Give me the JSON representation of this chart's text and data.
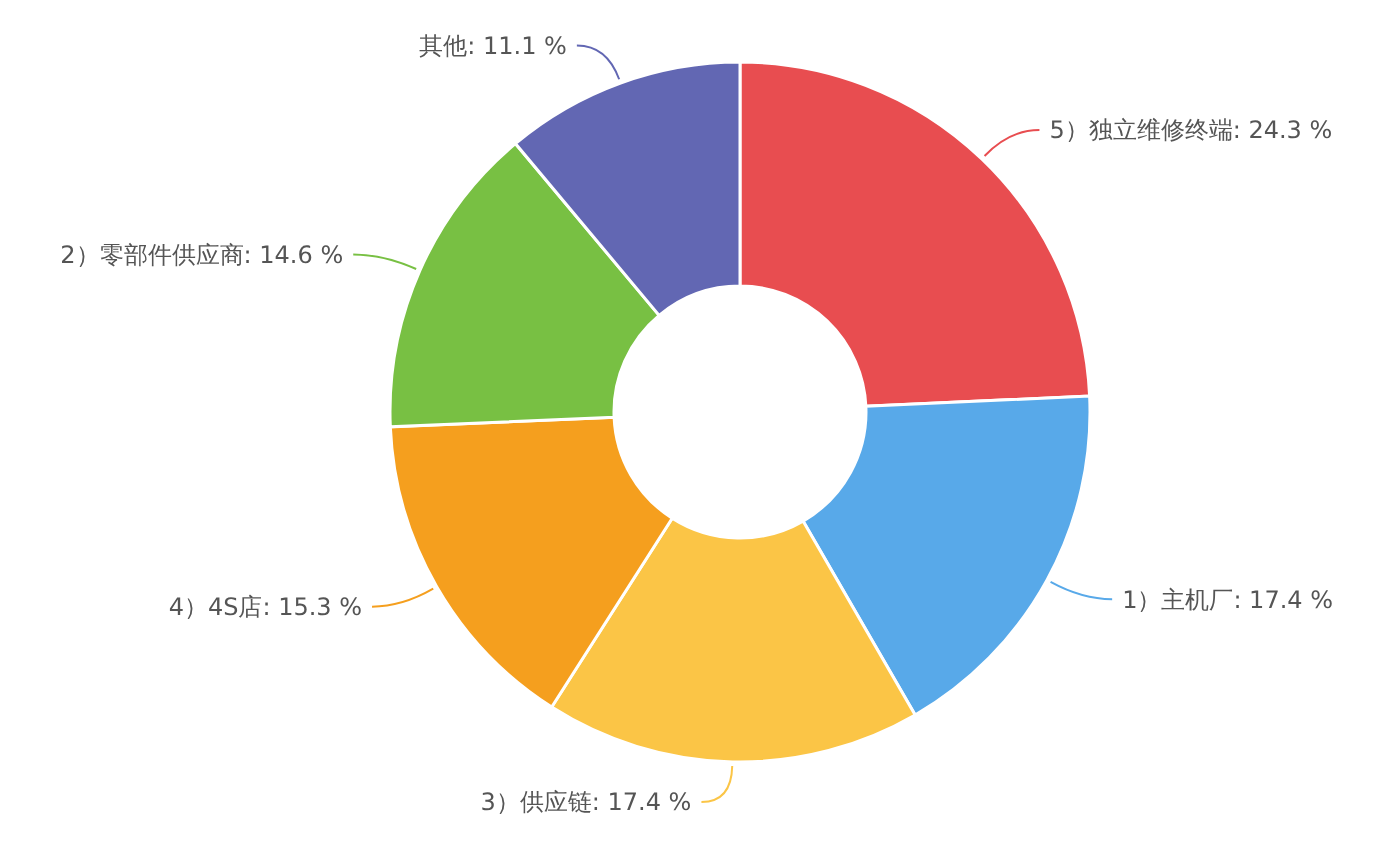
{
  "chart_data": {
    "type": "donut",
    "categories": [
      "5）独立维修终端",
      "1）主机厂",
      "3）供应链",
      "4）4S店",
      "2）零部件供应商",
      "其他"
    ],
    "values": [
      24.3,
      17.4,
      17.4,
      15.3,
      14.6,
      11.1
    ],
    "value_labels": [
      "24.3 %",
      "17.4 %",
      "17.4 %",
      "15.3 %",
      "14.6 %",
      "11.1 %"
    ],
    "colors": [
      "#e84d50",
      "#58a9e9",
      "#fbc546",
      "#f59f1e",
      "#78c043",
      "#6267b3"
    ]
  }
}
